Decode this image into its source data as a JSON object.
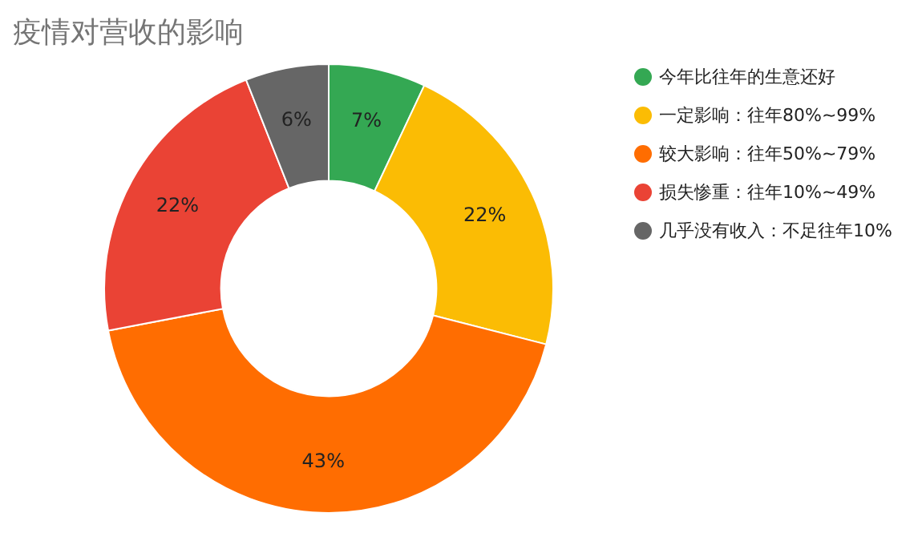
{
  "chart_data": {
    "type": "donut",
    "title": "疫情对营收的影响",
    "categories": [
      "今年比往年的生意还好",
      "一定影响：往年80%~99%",
      "较大影响：往年50%~79%",
      "损失惨重：往年10%~49%",
      "几乎没有收入：不足往年10%"
    ],
    "values": [
      7,
      22,
      43,
      22,
      6
    ],
    "colors": [
      "#34a853",
      "#fbbc04",
      "#ff6d01",
      "#ea4335",
      "#666666"
    ],
    "value_labels": [
      "7%",
      "22%",
      "43%",
      "22%",
      "6%"
    ],
    "legend": "right"
  }
}
